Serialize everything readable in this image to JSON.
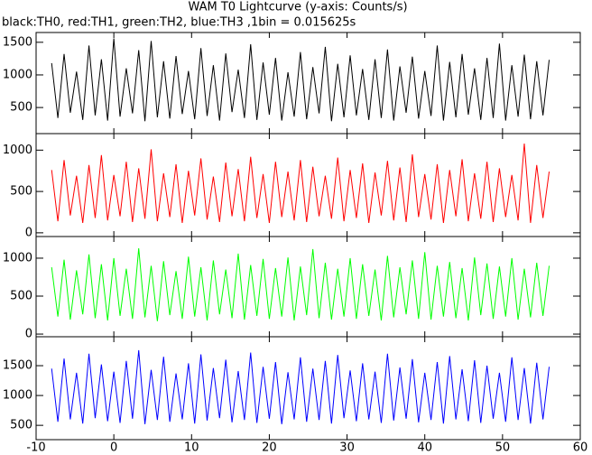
{
  "chart_data": {
    "type": "line",
    "title": "WAM T0 Lightcurve (y-axis: Counts/s)",
    "subtitle": "black:TH0, red:TH1, green:TH2, blue:TH3 ,1bin = 0.015625s",
    "xlim": [
      -10,
      60
    ],
    "xticks": [
      -10,
      0,
      10,
      20,
      30,
      40,
      50,
      60
    ],
    "x": [
      -8,
      -7.2,
      -6.4,
      -5.6,
      -4.8,
      -4,
      -3.2,
      -2.4,
      -1.6,
      -0.8,
      0,
      0.8,
      1.6,
      2.4,
      3.2,
      4,
      4.8,
      5.6,
      6.4,
      7.2,
      8,
      8.8,
      9.6,
      10.4,
      11.2,
      12,
      12.8,
      13.6,
      14.4,
      15.2,
      16,
      16.8,
      17.6,
      18.4,
      19.2,
      20,
      20.8,
      21.6,
      22.4,
      23.2,
      24,
      24.8,
      25.6,
      26.4,
      27.2,
      28,
      28.8,
      29.6,
      30.4,
      31.2,
      32,
      32.8,
      33.6,
      34.4,
      35.2,
      36,
      36.8,
      37.6,
      38.4,
      39.2,
      40,
      40.8,
      41.6,
      42.4,
      43.2,
      44,
      44.8,
      45.6,
      46.4,
      47.2,
      48,
      48.8,
      49.6,
      50.4,
      51.2,
      52,
      52.8,
      53.6,
      54.4,
      55.2,
      56
    ],
    "series": [
      {
        "color": "#000000",
        "ylim": [
          100,
          1650
        ],
        "yticks": [
          500,
          1000,
          1500
        ],
        "values": [
          1180,
          340,
          1320,
          420,
          1050,
          310,
          1450,
          380,
          1240,
          300,
          1560,
          360,
          1100,
          410,
          1380,
          290,
          1520,
          350,
          1210,
          330,
          1290,
          400,
          1060,
          320,
          1410,
          370,
          1150,
          300,
          1330,
          430,
          1080,
          340,
          1470,
          310,
          1190,
          390,
          1260,
          300,
          1040,
          360,
          1350,
          320,
          1120,
          410,
          1430,
          290,
          1170,
          350,
          1300,
          380,
          1090,
          310,
          1240,
          340,
          1390,
          300,
          1130,
          420,
          1280,
          330,
          1060,
          370,
          1450,
          300,
          1200,
          350,
          1320,
          390,
          1100,
          310,
          1260,
          340,
          1480,
          300,
          1150,
          360,
          1310,
          320,
          1210,
          380,
          1230
        ]
      },
      {
        "color": "#ff0000",
        "ylim": [
          -45,
          1200
        ],
        "yticks": [
          0,
          500,
          1000
        ],
        "values": [
          760,
          140,
          880,
          210,
          690,
          120,
          820,
          180,
          940,
          150,
          700,
          200,
          860,
          130,
          780,
          170,
          1010,
          140,
          720,
          190,
          830,
          120,
          750,
          210,
          900,
          160,
          680,
          130,
          850,
          200,
          770,
          140,
          920,
          180,
          710,
          120,
          860,
          190,
          740,
          150,
          880,
          130,
          800,
          200,
          690,
          170,
          910,
          140,
          760,
          180,
          840,
          120,
          730,
          210,
          870,
          150,
          790,
          130,
          950,
          190,
          710,
          160,
          830,
          120,
          760,
          200,
          890,
          140,
          720,
          170,
          860,
          130,
          780,
          190,
          700,
          150,
          1080,
          120,
          820,
          180,
          740
        ]
      },
      {
        "color": "#00ff00",
        "ylim": [
          -35,
          1285
        ],
        "yticks": [
          0,
          500,
          1000
        ],
        "values": [
          880,
          230,
          980,
          190,
          840,
          260,
          1050,
          210,
          920,
          180,
          1000,
          240,
          860,
          200,
          1130,
          220,
          900,
          170,
          960,
          250,
          830,
          200,
          1020,
          230,
          880,
          180,
          970,
          260,
          850,
          210,
          1060,
          190,
          910,
          240,
          990,
          200,
          870,
          230,
          1010,
          180,
          890,
          250,
          1120,
          210,
          940,
          190,
          860,
          230,
          1000,
          200,
          920,
          240,
          850,
          180,
          1030,
          220,
          880,
          260,
          970,
          200,
          1080,
          190,
          900,
          230,
          950,
          210,
          870,
          180,
          1010,
          250,
          930,
          200,
          890,
          230,
          1000,
          190,
          860,
          220,
          940,
          240,
          900
        ]
      },
      {
        "color": "#0000ff",
        "ylim": [
          260,
          1985
        ],
        "yticks": [
          500,
          1000,
          1500
        ],
        "values": [
          1450,
          560,
          1620,
          600,
          1380,
          530,
          1700,
          620,
          1520,
          570,
          1400,
          540,
          1580,
          610,
          1760,
          520,
          1430,
          590,
          1650,
          560,
          1370,
          600,
          1540,
          530,
          1690,
          580,
          1460,
          620,
          1600,
          550,
          1410,
          590,
          1720,
          540,
          1480,
          610,
          1560,
          520,
          1390,
          600,
          1640,
          560,
          1450,
          590,
          1580,
          530,
          1680,
          620,
          1420,
          570,
          1540,
          600,
          1400,
          540,
          1700,
          580,
          1470,
          610,
          1610,
          550,
          1380,
          590,
          1560,
          530,
          1660,
          600,
          1440,
          570,
          1590,
          540,
          1500,
          610,
          1380,
          560,
          1640,
          590,
          1460,
          530,
          1550,
          600,
          1480
        ]
      }
    ]
  }
}
